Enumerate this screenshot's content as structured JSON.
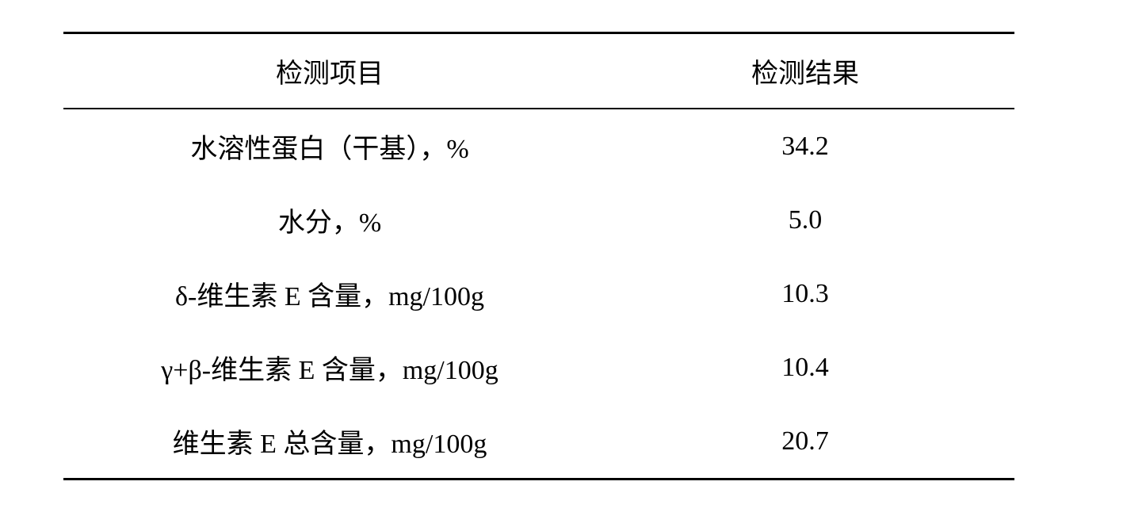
{
  "table": {
    "columns": [
      "检测项目",
      "检测结果"
    ],
    "rows": [
      [
        "水溶性蛋白（干基），%",
        "34.2"
      ],
      [
        "水分，%",
        "5.0"
      ],
      [
        "δ-维生素 E 含量，mg/100g",
        "10.3"
      ],
      [
        "γ+β-维生素 E 含量，mg/100g",
        "10.4"
      ],
      [
        "维生素 E 总含量，mg/100g",
        "20.7"
      ]
    ],
    "font_size": 34,
    "border_color": "#000000",
    "text_color": "#000000",
    "background_color": "#ffffff"
  }
}
